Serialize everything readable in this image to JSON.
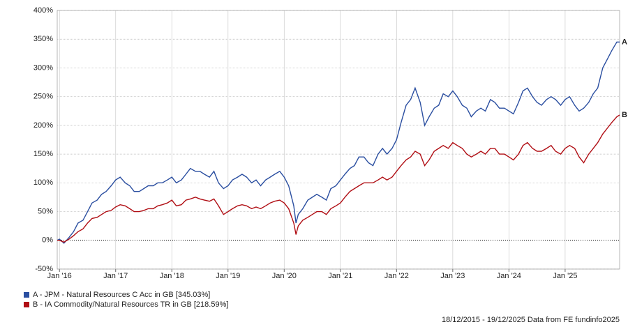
{
  "chart_data": {
    "type": "line",
    "footer": "18/12/2015 - 19/12/2025 Data from FE fundinfo2025",
    "xlim": [
      2015.96,
      2025.97
    ],
    "xticks": [
      {
        "value": 2016,
        "label": "Jan '16"
      },
      {
        "value": 2017,
        "label": "Jan '17"
      },
      {
        "value": 2018,
        "label": "Jan '18"
      },
      {
        "value": 2019,
        "label": "Jan '19"
      },
      {
        "value": 2020,
        "label": "Jan '20"
      },
      {
        "value": 2021,
        "label": "Jan '21"
      },
      {
        "value": 2022,
        "label": "Jan '22"
      },
      {
        "value": 2023,
        "label": "Jan '23"
      },
      {
        "value": 2024,
        "label": "Jan '24"
      },
      {
        "value": 2025,
        "label": "Jan '25"
      }
    ],
    "ylim": [
      -50,
      400
    ],
    "yticks": [
      {
        "value": -50,
        "label": "-50%"
      },
      {
        "value": 0,
        "label": "0%"
      },
      {
        "value": 50,
        "label": "50%"
      },
      {
        "value": 100,
        "label": "100%"
      },
      {
        "value": 150,
        "label": "150%"
      },
      {
        "value": 200,
        "label": "200%"
      },
      {
        "value": 250,
        "label": "250%"
      },
      {
        "value": 300,
        "label": "300%"
      },
      {
        "value": 350,
        "label": "350%"
      },
      {
        "value": 400,
        "label": "400%"
      }
    ],
    "grid": true,
    "x": [
      2015.96,
      2016.0,
      2016.08,
      2016.17,
      2016.25,
      2016.33,
      2016.42,
      2016.5,
      2016.58,
      2016.67,
      2016.75,
      2016.83,
      2016.92,
      2017.0,
      2017.08,
      2017.17,
      2017.25,
      2017.33,
      2017.42,
      2017.5,
      2017.58,
      2017.67,
      2017.75,
      2017.83,
      2017.92,
      2018.0,
      2018.08,
      2018.17,
      2018.25,
      2018.33,
      2018.42,
      2018.5,
      2018.58,
      2018.67,
      2018.75,
      2018.83,
      2018.92,
      2019.0,
      2019.08,
      2019.17,
      2019.25,
      2019.33,
      2019.42,
      2019.5,
      2019.58,
      2019.67,
      2019.75,
      2019.83,
      2019.92,
      2020.0,
      2020.08,
      2020.17,
      2020.21,
      2020.25,
      2020.33,
      2020.42,
      2020.5,
      2020.58,
      2020.67,
      2020.75,
      2020.83,
      2020.92,
      2021.0,
      2021.08,
      2021.17,
      2021.25,
      2021.33,
      2021.42,
      2021.5,
      2021.58,
      2021.67,
      2021.75,
      2021.83,
      2021.92,
      2022.0,
      2022.08,
      2022.17,
      2022.25,
      2022.33,
      2022.42,
      2022.5,
      2022.58,
      2022.67,
      2022.75,
      2022.83,
      2022.92,
      2023.0,
      2023.08,
      2023.17,
      2023.25,
      2023.33,
      2023.42,
      2023.5,
      2023.58,
      2023.67,
      2023.75,
      2023.83,
      2023.92,
      2024.0,
      2024.08,
      2024.17,
      2024.25,
      2024.33,
      2024.42,
      2024.5,
      2024.58,
      2024.67,
      2024.75,
      2024.83,
      2024.92,
      2025.0,
      2025.08,
      2025.17,
      2025.25,
      2025.33,
      2025.42,
      2025.5,
      2025.58,
      2025.67,
      2025.75,
      2025.83,
      2025.92,
      2025.97
    ],
    "series": [
      {
        "name": "A - JPM - Natural Resources C Acc in GB [345.03%]",
        "end_label": "A",
        "color": "#2a4ea0",
        "values": [
          0,
          2,
          -5,
          5,
          15,
          30,
          35,
          50,
          65,
          70,
          80,
          85,
          95,
          105,
          110,
          100,
          95,
          85,
          85,
          90,
          95,
          95,
          100,
          100,
          105,
          110,
          100,
          105,
          115,
          125,
          120,
          120,
          115,
          110,
          120,
          100,
          90,
          95,
          105,
          110,
          115,
          110,
          100,
          105,
          95,
          105,
          110,
          115,
          120,
          110,
          95,
          60,
          30,
          45,
          55,
          70,
          75,
          80,
          75,
          70,
          90,
          95,
          105,
          115,
          125,
          130,
          145,
          145,
          135,
          130,
          150,
          160,
          150,
          160,
          175,
          205,
          235,
          245,
          265,
          240,
          200,
          215,
          230,
          235,
          255,
          250,
          260,
          250,
          235,
          230,
          215,
          225,
          230,
          225,
          245,
          240,
          230,
          230,
          225,
          220,
          240,
          260,
          265,
          250,
          240,
          235,
          245,
          250,
          245,
          235,
          245,
          250,
          235,
          225,
          230,
          240,
          255,
          265,
          300,
          315,
          330,
          345,
          345
        ]
      },
      {
        "name": "B - IA Commodity/Natural Resources TR in GB [218.59%]",
        "end_label": "B",
        "color": "#b00e14",
        "values": [
          0,
          0,
          -3,
          2,
          8,
          15,
          20,
          30,
          38,
          40,
          45,
          50,
          52,
          58,
          62,
          60,
          55,
          50,
          50,
          52,
          55,
          55,
          60,
          62,
          65,
          70,
          60,
          62,
          70,
          72,
          75,
          72,
          70,
          68,
          72,
          60,
          45,
          50,
          55,
          60,
          62,
          60,
          55,
          58,
          55,
          60,
          65,
          68,
          70,
          65,
          55,
          30,
          10,
          25,
          35,
          40,
          45,
          50,
          50,
          45,
          55,
          60,
          65,
          75,
          85,
          90,
          95,
          100,
          100,
          100,
          105,
          110,
          105,
          110,
          120,
          130,
          140,
          145,
          155,
          150,
          130,
          140,
          155,
          160,
          165,
          160,
          170,
          165,
          160,
          150,
          145,
          150,
          155,
          150,
          160,
          160,
          150,
          150,
          145,
          140,
          150,
          165,
          170,
          160,
          155,
          155,
          160,
          165,
          155,
          150,
          160,
          165,
          160,
          145,
          135,
          150,
          160,
          170,
          185,
          195,
          205,
          215,
          218
        ]
      }
    ]
  }
}
